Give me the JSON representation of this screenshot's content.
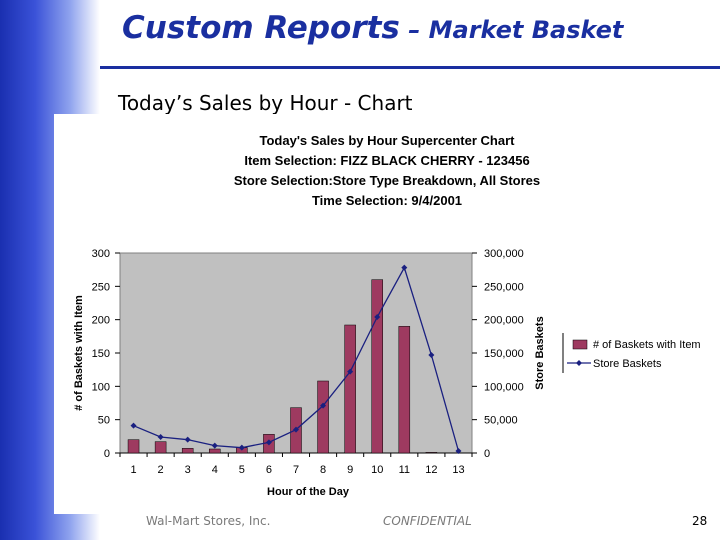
{
  "slide": {
    "title_main": "Custom Reports",
    "title_sep": " – ",
    "title_tail": "Market Basket",
    "subtitle": "Today’s Sales by Hour - Chart",
    "footer_left": "Wal-Mart Stores, Inc.",
    "footer_mid": "CONFIDENTIAL",
    "page_number": "28"
  },
  "colors": {
    "title": "#1a2fa0",
    "bar": "#9e3a60",
    "line": "#1a2080",
    "plot_bg": "#c0c0c0"
  },
  "chart_data": {
    "type": "bar",
    "title_lines": [
      "Today's Sales by Hour Supercenter Chart",
      "Item Selection: FIZZ BLACK CHERRY - 123456",
      "Store Selection:Store Type Breakdown, All Stores",
      "Time Selection: 9/4/2001"
    ],
    "xlabel": "Hour of the Day",
    "ylabel": "# of Baskets with Item",
    "y2label": "Store Baskets",
    "categories": [
      "1",
      "2",
      "3",
      "4",
      "5",
      "6",
      "7",
      "8",
      "9",
      "10",
      "11",
      "12",
      "13"
    ],
    "ylim": [
      0,
      300
    ],
    "y_ticks": [
      "0",
      "50",
      "100",
      "150",
      "200",
      "250",
      "300"
    ],
    "y2lim": [
      0,
      300000
    ],
    "y2_ticks": [
      "0",
      "50,000",
      "100,000",
      "150,000",
      "200,000",
      "250,000",
      "300,000"
    ],
    "grid": false,
    "legend_position": "right",
    "series": [
      {
        "name": "# of Baskets with Item",
        "type": "bar",
        "axis": "left",
        "values": [
          20,
          17,
          7,
          6,
          8,
          28,
          68,
          108,
          192,
          260,
          190,
          1,
          0
        ]
      },
      {
        "name": "Store Baskets",
        "type": "line",
        "axis": "right",
        "values": [
          41000,
          24000,
          20000,
          11000,
          8000,
          16000,
          35000,
          71000,
          122000,
          204000,
          278000,
          147000,
          3000
        ]
      }
    ]
  }
}
